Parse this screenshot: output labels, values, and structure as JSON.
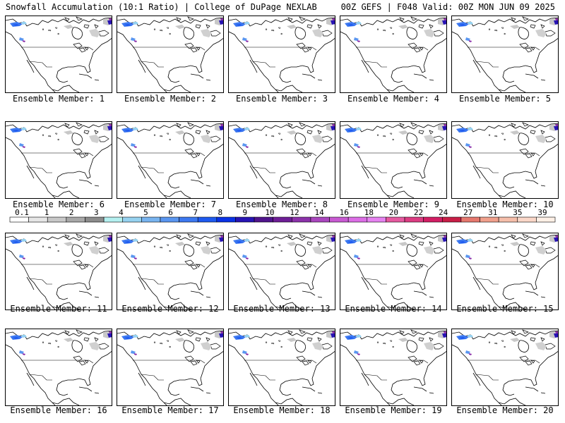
{
  "header": {
    "left": "Snowfall Accumulation (10:1 Ratio) | College of DuPage NEXLAB",
    "right": "00Z GEFS | F048 Valid: 00Z MON JUN 09 2025"
  },
  "member_label_prefix": "Ensemble Member: ",
  "members": [
    "1",
    "2",
    "3",
    "4",
    "5",
    "6",
    "7",
    "8",
    "9",
    "10",
    "11",
    "12",
    "13",
    "14",
    "15",
    "16",
    "17",
    "18",
    "19",
    "20"
  ],
  "colorbar": {
    "labels": [
      "0.1",
      "1",
      "2",
      "3",
      "4",
      "5",
      "6",
      "7",
      "8",
      "9",
      "10",
      "12",
      "14",
      "16",
      "18",
      "20",
      "22",
      "24",
      "27",
      "31",
      "35",
      "39"
    ],
    "colors": [
      "#ffffff",
      "#e6e6e6",
      "#c8c8c8",
      "#a8a8a8",
      "#8c8c8c",
      "#b4f0f0",
      "#96d2f0",
      "#78b4f0",
      "#5a96f0",
      "#3c78f0",
      "#1e5af0",
      "#0a32e6",
      "#2814b4",
      "#50148c",
      "#6e1e96",
      "#8c32aa",
      "#aa46be",
      "#c85ad2",
      "#dc6ee6",
      "#e682f0",
      "#e65aa0",
      "#dc3c82",
      "#d21e64",
      "#c81e46",
      "#e6786e",
      "#f0a08c",
      "#f5beaa",
      "#fad7c8",
      "#fff0e6"
    ]
  }
}
